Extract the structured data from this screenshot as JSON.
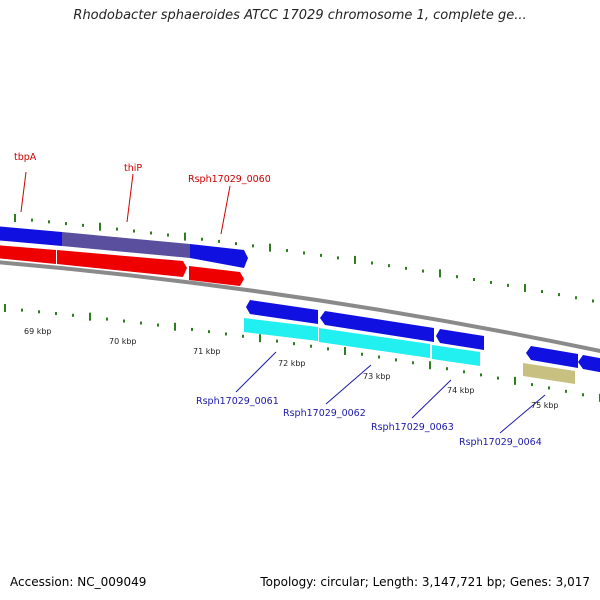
{
  "title": "Rhodobacter sphaeroides ATCC 17029 chromosome 1, complete ge...",
  "footer": {
    "accession": "Accession: NC_009049",
    "summary": "Topology: circular; Length: 3,147,721 bp; Genes: 3,017"
  },
  "colors": {
    "backbone": "#8a8a8a",
    "tick": "#2e7d1e",
    "top_label": "#cc0000",
    "bottom_label": "#1a1aa8",
    "blue_gene": "#1010e0",
    "red_gene": "#ee0000",
    "purple_gene": "#5a4f9e",
    "cyan_gene": "#22f0f0",
    "olive_gene": "#c8c080"
  },
  "tick_labels": [
    "69 kbp",
    "70 kbp",
    "71 kbp",
    "72 kbp",
    "73 kbp",
    "74 kbp",
    "75 kbp"
  ],
  "gene_labels_top": [
    "tbpA",
    "thiP",
    "Rsph17029_0060"
  ],
  "gene_labels_bottom": [
    "Rsph17029_0061",
    "Rsph17029_0062",
    "Rsph17029_0063",
    "Rsph17029_0064"
  ]
}
